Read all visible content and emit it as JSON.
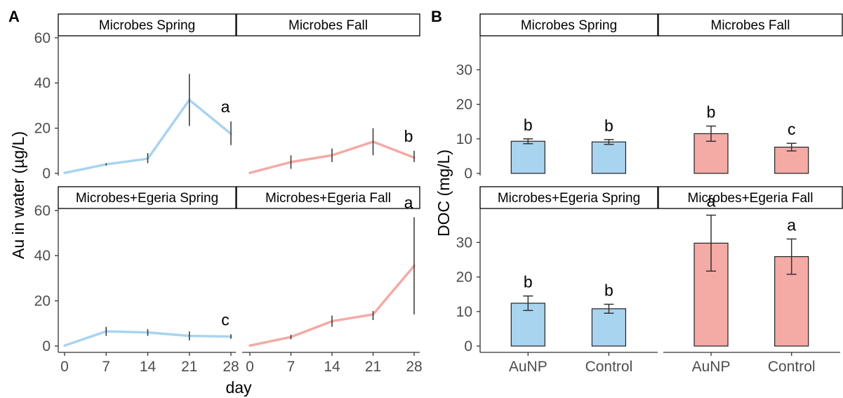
{
  "colors": {
    "spring": "#a9d4ef",
    "fall": "#f4aaa5",
    "bar_stroke": "#222222"
  },
  "chart_data": [
    {
      "type": "line",
      "panel_tag": "A",
      "xlabel": "day",
      "ylabel": "Au in water (µg/L)",
      "x": [
        0,
        7,
        14,
        21,
        28
      ],
      "x_tick_labels": [
        "0",
        "7",
        "14",
        "21",
        "28"
      ],
      "y_tick_labels": [
        "0",
        "20",
        "40",
        "60"
      ],
      "ylim": [
        -1,
        62
      ],
      "grid": false,
      "facets": [
        {
          "strip": "Microbes Spring",
          "season": "spring",
          "letter": "a",
          "values": [
            0.2,
            4,
            6.5,
            32.5,
            17.5
          ],
          "err_low": [
            0.2,
            3.5,
            4.5,
            21,
            12.5
          ],
          "err_high": [
            0.2,
            4.5,
            9,
            44,
            23
          ]
        },
        {
          "strip": "Microbes Fall",
          "season": "fall",
          "letter": "b",
          "values": [
            0.2,
            5,
            8,
            14,
            7
          ],
          "err_low": [
            0.2,
            2,
            5,
            8,
            5
          ],
          "err_high": [
            0.2,
            8,
            11,
            20,
            10
          ]
        },
        {
          "strip": "Microbes+Egeria Spring",
          "season": "spring",
          "letter": "c",
          "values": [
            0.2,
            6.5,
            6,
            4.5,
            4.2
          ],
          "err_low": [
            0.2,
            4.5,
            4.5,
            2.5,
            3.2
          ],
          "err_high": [
            0.2,
            8.5,
            7.5,
            6.5,
            5.2
          ]
        },
        {
          "strip": "Microbes+Egeria Fall",
          "season": "fall",
          "letter": "a",
          "values": [
            0.2,
            4,
            11,
            14,
            35.5
          ],
          "err_low": [
            0.2,
            3,
            8.5,
            11.5,
            14
          ],
          "err_high": [
            0.2,
            5,
            13.5,
            15.5,
            57
          ]
        }
      ]
    },
    {
      "type": "bar",
      "panel_tag": "B",
      "ylabel": "DOC (mg/L)",
      "categories": [
        "AuNP",
        "Control"
      ],
      "y_tick_labels": [
        "0",
        "10",
        "20",
        "30"
      ],
      "ylim": [
        -0.5,
        40
      ],
      "grid": false,
      "facets": [
        {
          "strip": "Microbes Spring",
          "season": "spring",
          "letters": [
            "b",
            "b"
          ],
          "values": [
            9.3,
            9.1
          ],
          "err_low": [
            8.6,
            8.4
          ],
          "err_high": [
            10.0,
            9.8
          ]
        },
        {
          "strip": "Microbes Fall",
          "season": "fall",
          "letters": [
            "b",
            "c"
          ],
          "values": [
            11.5,
            7.6
          ],
          "err_low": [
            9.3,
            6.5
          ],
          "err_high": [
            13.7,
            8.7
          ]
        },
        {
          "strip": "Microbes+Egeria Spring",
          "season": "spring",
          "letters": [
            "b",
            "b"
          ],
          "values": [
            12.4,
            10.8
          ],
          "err_low": [
            10.3,
            9.5
          ],
          "err_high": [
            14.5,
            12.1
          ]
        },
        {
          "strip": "Microbes+Egeria Fall",
          "season": "fall",
          "letters": [
            "a",
            "a"
          ],
          "values": [
            29.8,
            25.9
          ],
          "err_low": [
            21.7,
            20.8
          ],
          "err_high": [
            37.9,
            31.0
          ]
        }
      ]
    }
  ]
}
